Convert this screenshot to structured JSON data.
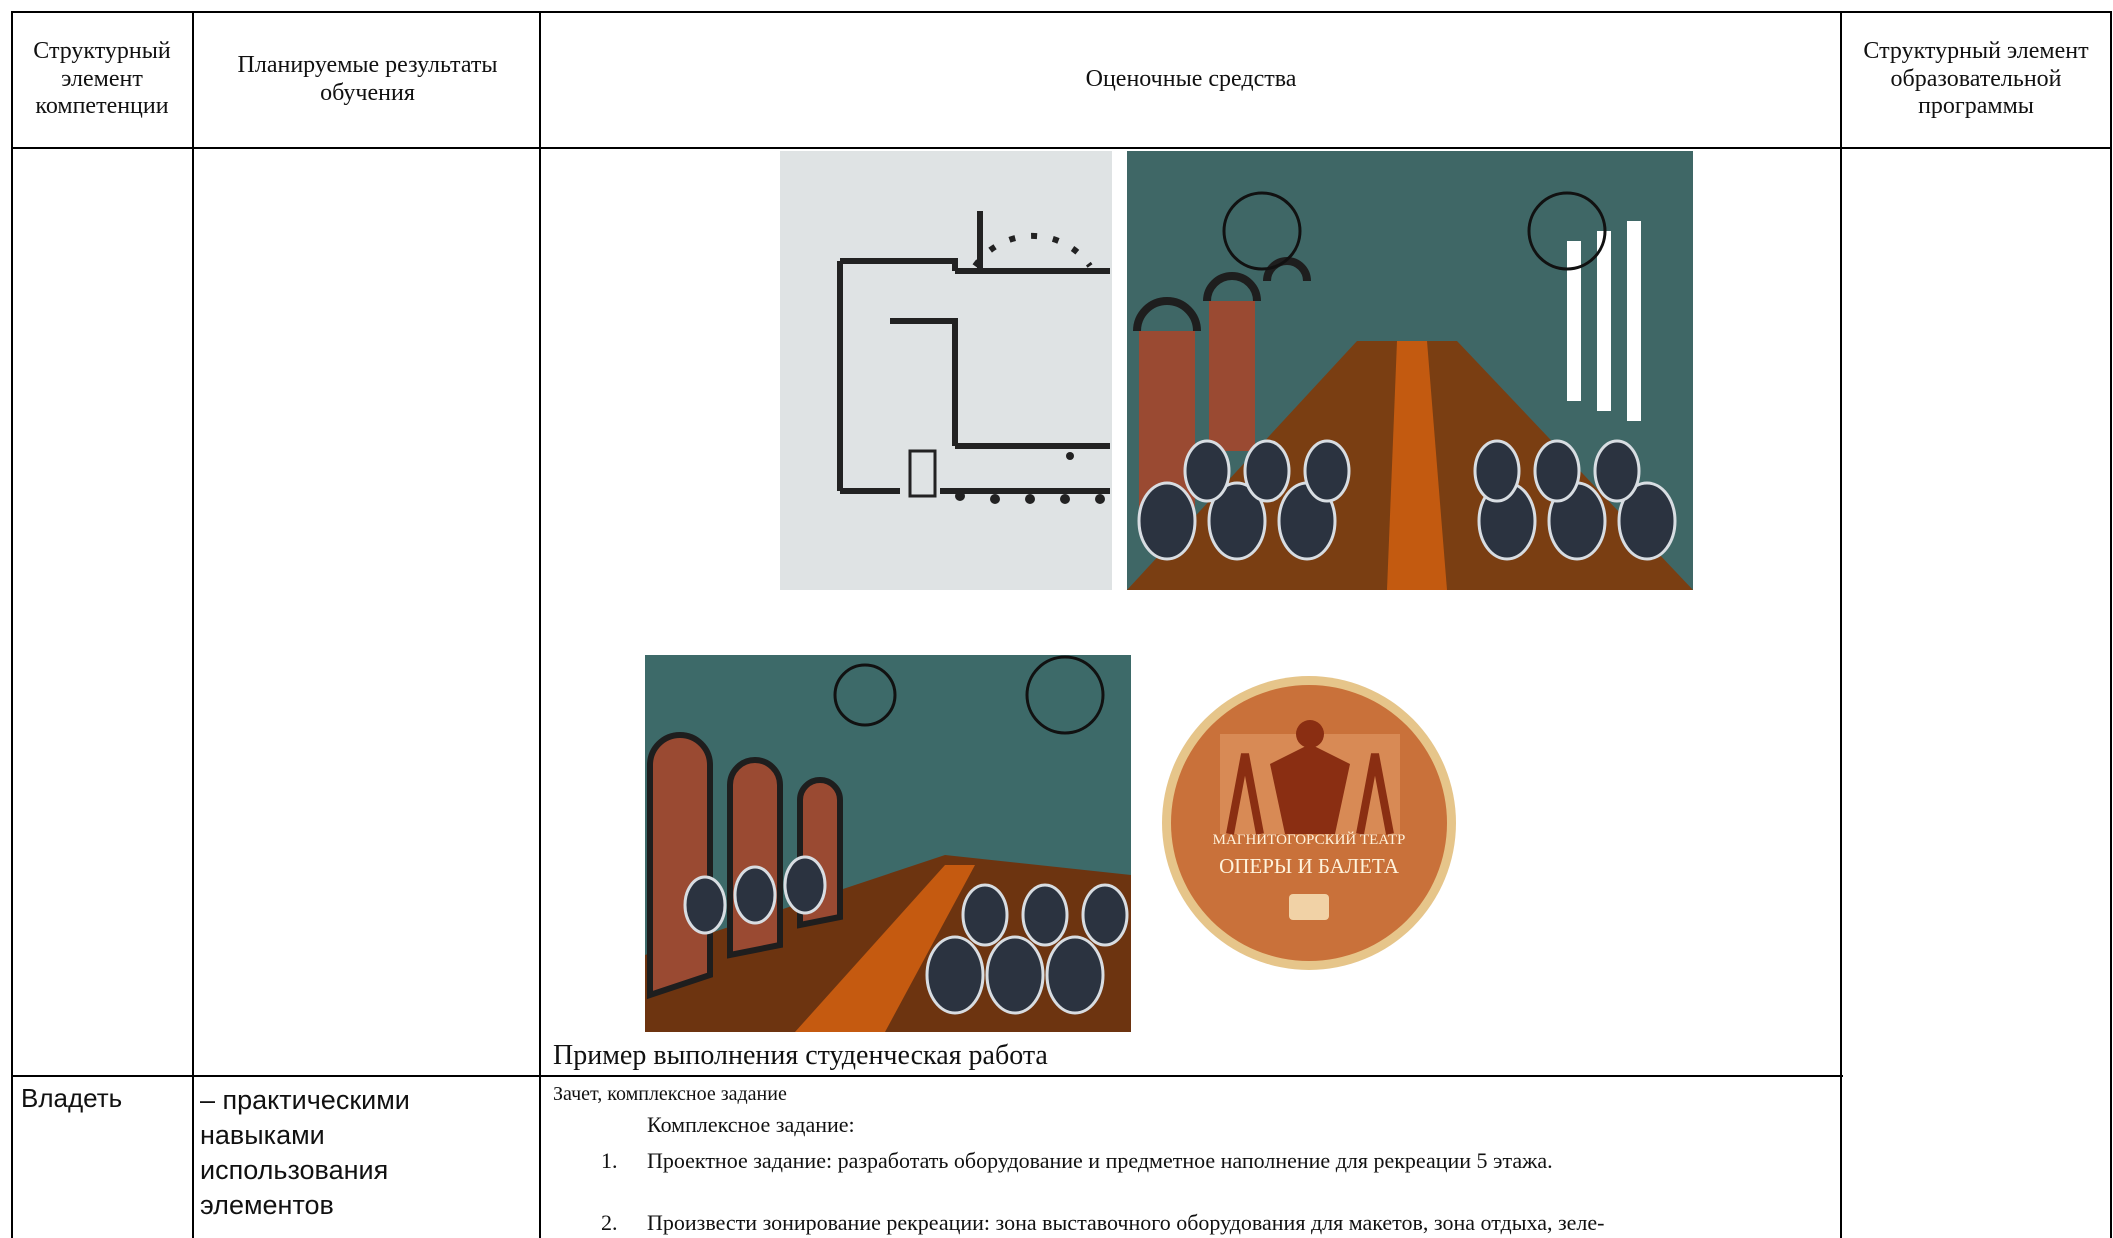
{
  "header": [
    "Структурный элемент компетенции",
    "Планируемые результаты обучения",
    "Оценочные средства",
    "Структурный элемент образовательной программы"
  ],
  "example": {
    "caption": "Пример выполнения студенческая работа",
    "logo": {
      "line1": "МАГНИТОГОРСКИЙ ТЕАТР",
      "line2": "ОПЕРЫ И БАЛЕТА"
    }
  },
  "row": {
    "competence": "Владеть",
    "result": "– практическими навыками использования элементов",
    "assessment": {
      "heading": "Зачет, комплексное задание",
      "subheading": "Комплексное задание:",
      "items": [
        {
          "number": "1.",
          "text": "Проектное задание: разработать оборудование и предметное наполнение для рекреации 5 этажа."
        },
        {
          "number": "2.",
          "text": "Произвести зонирование рекреации: зона выставочного оборудования для макетов, зона отдыха, зеле-"
        }
      ]
    }
  }
}
